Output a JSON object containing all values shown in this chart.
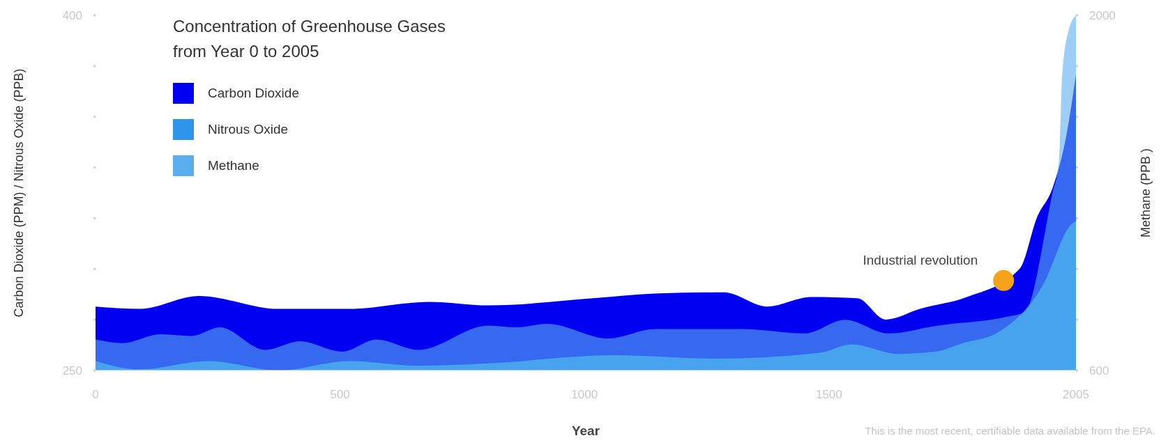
{
  "chart_data": {
    "type": "area",
    "title": "Concentration of Greenhouse Gases\nfrom Year 0 to 2005",
    "xlabel": "Year",
    "ylabel": "Carbon Dioxide (PPM) / Nitrous Oxide (PPB)",
    "y2label": "Methane (PPB )",
    "xlim": [
      0,
      2005
    ],
    "xticks": [
      0,
      500,
      1000,
      1500,
      2005
    ],
    "ylim": [
      250,
      400
    ],
    "yticks": [
      250,
      {
        "value": 271.43,
        "label": null
      },
      {
        "value": 292.86,
        "label": null
      },
      {
        "value": 314.29,
        "label": null
      },
      {
        "value": 335.71,
        "label": null
      },
      {
        "value": 357.14,
        "label": null
      },
      {
        "value": 378.57,
        "label": null
      },
      400
    ],
    "y2lim": [
      600,
      2000
    ],
    "y2ticks": [
      600,
      {
        "value": 800,
        "label": null
      },
      {
        "value": 1000,
        "label": null
      },
      {
        "value": 1200,
        "label": null
      },
      {
        "value": 1400,
        "label": null
      },
      {
        "value": 1600,
        "label": null
      },
      {
        "value": 1800,
        "label": null
      },
      2000
    ],
    "legend": "top left",
    "grid": false,
    "series": [
      {
        "name": "Carbon Dioxide",
        "color": "#0000f0",
        "x": [
          0,
          90,
          211,
          375,
          518,
          682,
          803,
          1017,
          1144,
          1285,
          1374,
          1463,
          1558,
          1616,
          1686,
          1782,
          1890,
          1926,
          1957,
          1987,
          2005
        ],
        "values": [
          277,
          276,
          281.5,
          276,
          276,
          279,
          277.5,
          280.5,
          282.5,
          283,
          277,
          281,
          280.5,
          271.5,
          276,
          281,
          293,
          315,
          327,
          351,
          375
        ]
      },
      {
        "name": "Nitrous Oxide",
        "color": "#2f95ea",
        "x": [
          0,
          90,
          232,
          375,
          518,
          660,
          803,
          1060,
          1272,
          1482,
          1546,
          1641,
          1718,
          1773,
          1845,
          1936,
          1997,
          2005
        ],
        "values": [
          254,
          250.5,
          254,
          250,
          254,
          252,
          253,
          256.5,
          255,
          257.5,
          261,
          257,
          258,
          261.5,
          266,
          285.5,
          312,
          313
        ]
      },
      {
        "name": "Methane",
        "color": "#5aaef0",
        "axis": "y2",
        "x": [
          0,
          54,
          133,
          197,
          254,
          347,
          418,
          504,
          575,
          660,
          803,
          860,
          924,
          1049,
          1144,
          1322,
          1450,
          1533,
          1622,
          1718,
          1864,
          1900,
          1957,
          1970,
          1977,
          1990,
          2005
        ],
        "values": [
          722,
          708,
          743,
          736,
          770,
          681,
          715,
          674,
          722,
          681,
          777,
          770,
          784,
          726,
          763,
          763,
          746,
          800,
          746,
          776,
          812,
          830,
          1300,
          1420,
          1770,
          1940,
          2000
        ]
      }
    ],
    "annotations": [
      {
        "text": "Industrial revolution",
        "x": 1857,
        "y": 288
      },
      "This is the most recent, certifiable data available from the EPA."
    ]
  }
}
